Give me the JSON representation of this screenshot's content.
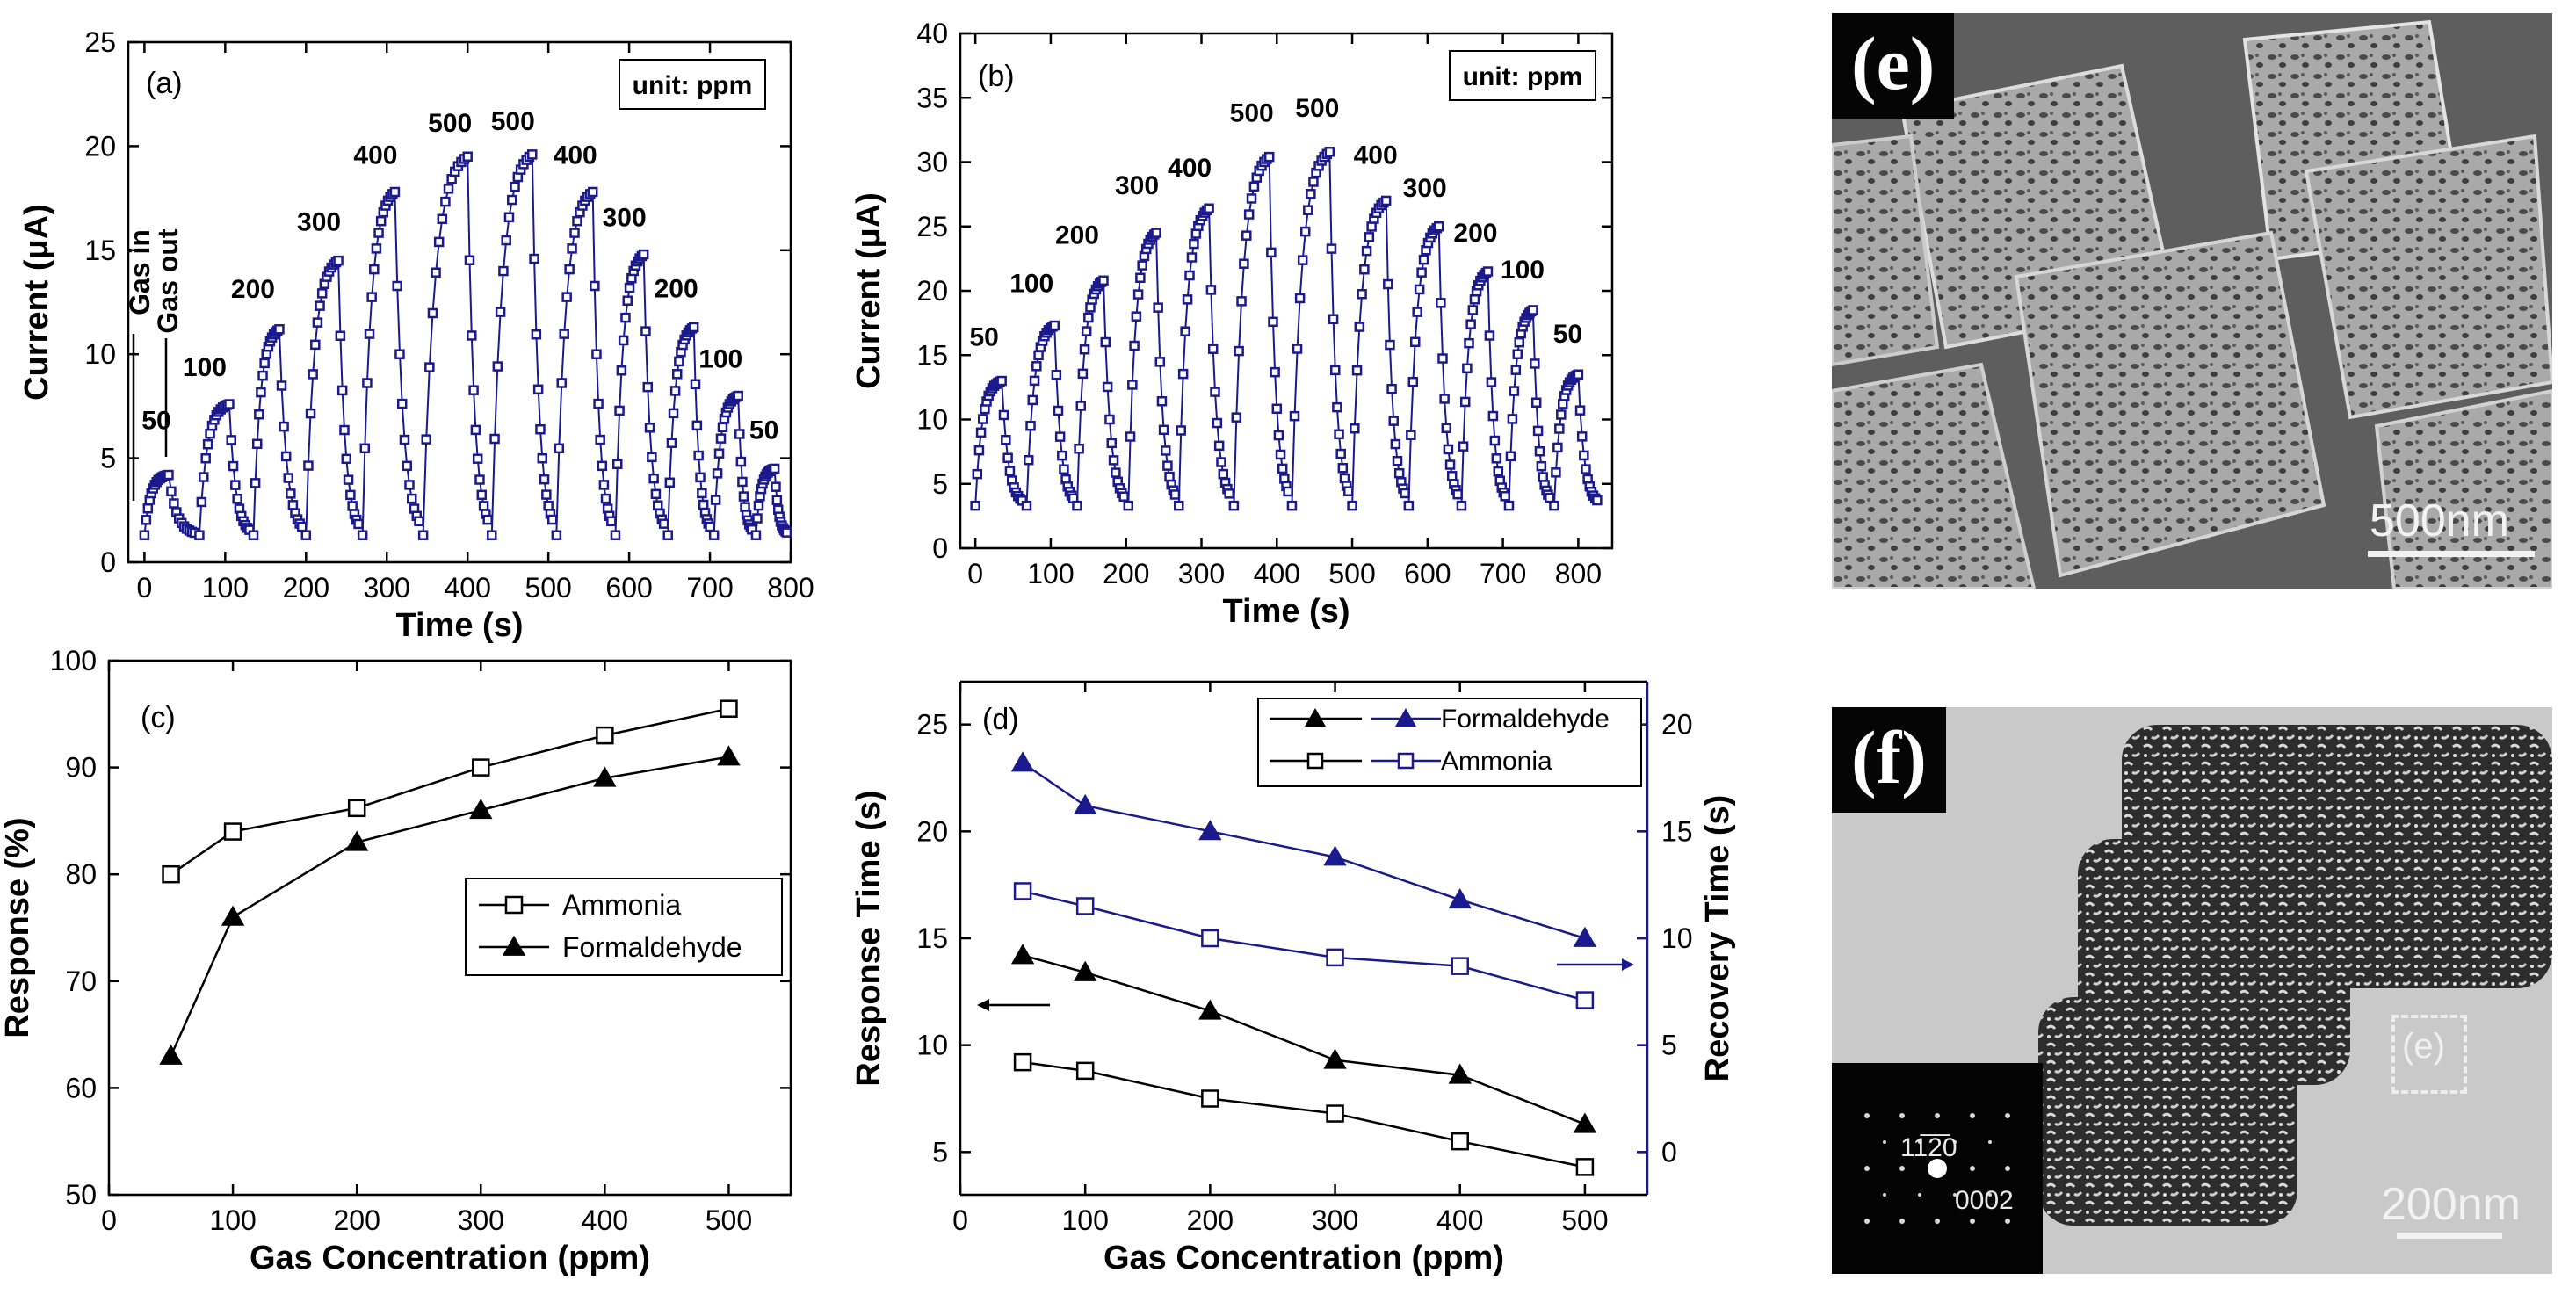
{
  "chart_data": [
    {
      "panel": "(a)",
      "type": "line",
      "xlabel": "Time (s)",
      "ylabel": "Current (μA)",
      "xlim": [
        -20,
        800
      ],
      "ylim": [
        0,
        25
      ],
      "xticks": [
        0,
        100,
        200,
        300,
        400,
        500,
        600,
        700,
        800
      ],
      "yticks": [
        0,
        5,
        10,
        15,
        20,
        25
      ],
      "unit_box": "unit: ppm",
      "annotation_in": "Gas in",
      "annotation_out": "Gas out",
      "baseline": 1.3,
      "pulses": [
        {
          "label": "50",
          "start": 0,
          "peak_time": 30,
          "end": 62,
          "peak": 4.2
        },
        {
          "label": "100",
          "start": 68,
          "peak_time": 105,
          "end": 130,
          "peak": 7.6
        },
        {
          "label": "200",
          "start": 135,
          "peak_time": 167,
          "end": 195,
          "peak": 11.2
        },
        {
          "label": "300",
          "start": 200,
          "peak_time": 240,
          "end": 265,
          "peak": 14.5
        },
        {
          "label": "400",
          "start": 270,
          "peak_time": 310,
          "end": 340,
          "peak": 17.8
        },
        {
          "label": "500",
          "start": 345,
          "peak_time": 400,
          "end": 425,
          "peak": 19.5
        },
        {
          "label": "500",
          "start": 430,
          "peak_time": 480,
          "end": 505,
          "peak": 19.6
        },
        {
          "label": "400",
          "start": 510,
          "peak_time": 555,
          "end": 578,
          "peak": 17.8
        },
        {
          "label": "300",
          "start": 583,
          "peak_time": 618,
          "end": 643,
          "peak": 14.8
        },
        {
          "label": "200",
          "start": 648,
          "peak_time": 680,
          "end": 700,
          "peak": 11.3
        },
        {
          "label": "100",
          "start": 705,
          "peak_time": 735,
          "end": 752,
          "peak": 8.0
        },
        {
          "label": "50",
          "start": 757,
          "peak_time": 780,
          "end": 795,
          "peak": 4.5
        }
      ]
    },
    {
      "panel": "(b)",
      "type": "line",
      "xlabel": "Time (s)",
      "ylabel": "Current (μA)",
      "xlim": [
        -20,
        845
      ],
      "ylim": [
        0,
        40
      ],
      "xticks": [
        0,
        100,
        200,
        300,
        400,
        500,
        600,
        700,
        800
      ],
      "yticks": [
        0,
        5,
        10,
        15,
        20,
        25,
        30,
        35,
        40
      ],
      "unit_box": "unit: ppm",
      "baseline": 3.3,
      "pulses": [
        {
          "label": "50",
          "start": 0,
          "peak_time": 35,
          "end": 62,
          "peak": 13.0
        },
        {
          "label": "100",
          "start": 68,
          "peak_time": 105,
          "end": 130,
          "peak": 17.3
        },
        {
          "label": "200",
          "start": 135,
          "peak_time": 170,
          "end": 197,
          "peak": 20.8
        },
        {
          "label": "300",
          "start": 203,
          "peak_time": 240,
          "end": 265,
          "peak": 24.5
        },
        {
          "label": "400",
          "start": 270,
          "peak_time": 310,
          "end": 337,
          "peak": 26.4
        },
        {
          "label": "500",
          "start": 343,
          "peak_time": 390,
          "end": 415,
          "peak": 30.4
        },
        {
          "label": "500",
          "start": 420,
          "peak_time": 470,
          "end": 495,
          "peak": 30.8
        },
        {
          "label": "400",
          "start": 500,
          "peak_time": 545,
          "end": 570,
          "peak": 27.0
        },
        {
          "label": "300",
          "start": 575,
          "peak_time": 615,
          "end": 640,
          "peak": 25.0
        },
        {
          "label": "200",
          "start": 645,
          "peak_time": 680,
          "end": 703,
          "peak": 21.5
        },
        {
          "label": "100",
          "start": 708,
          "peak_time": 740,
          "end": 762,
          "peak": 18.5
        },
        {
          "label": "50",
          "start": 768,
          "peak_time": 800,
          "end": 825,
          "peak": 13.5
        }
      ]
    },
    {
      "panel": "(c)",
      "type": "line",
      "xlabel": "Gas Concentration (ppm)",
      "ylabel": "Response (%)",
      "xlim": [
        0,
        550
      ],
      "ylim": [
        50,
        100
      ],
      "xticks": [
        0,
        100,
        200,
        300,
        400,
        500
      ],
      "yticks": [
        50,
        60,
        70,
        80,
        90,
        100
      ],
      "x": [
        50,
        100,
        200,
        300,
        400,
        500
      ],
      "series": [
        {
          "name": "Ammonia",
          "marker": "open-square",
          "values": [
            80,
            84,
            86.2,
            90,
            93,
            95.5
          ]
        },
        {
          "name": "Formaldehyde",
          "marker": "filled-triangle",
          "values": [
            63,
            76,
            83,
            86,
            89,
            91
          ]
        }
      ]
    },
    {
      "panel": "(d)",
      "type": "line",
      "xlabel": "Gas Concentration (ppm)",
      "ylabel": "Response Time (s)",
      "y2label": "Recovery Time (s)",
      "xlim": [
        0,
        550
      ],
      "ylim": [
        3,
        27
      ],
      "y2lim": [
        -2,
        22
      ],
      "xticks": [
        0,
        100,
        200,
        300,
        400,
        500
      ],
      "yticks": [
        5,
        10,
        15,
        20,
        25
      ],
      "y2ticks": [
        0,
        5,
        10,
        15,
        20
      ],
      "x": [
        50,
        100,
        200,
        300,
        400,
        500
      ],
      "series": [
        {
          "name": "Formaldehyde",
          "axis": "left",
          "marker": "filled-triangle",
          "color": "#000000",
          "values": [
            14.2,
            13.4,
            11.6,
            9.3,
            8.6,
            6.3
          ]
        },
        {
          "name": "Ammonia",
          "axis": "left",
          "marker": "open-square",
          "color": "#000000",
          "values": [
            9.2,
            8.8,
            7.5,
            6.8,
            5.5,
            4.3
          ]
        },
        {
          "name": "Formaldehyde",
          "axis": "right",
          "marker": "filled-triangle",
          "color": "#1a1a8c",
          "values": [
            18.2,
            16.2,
            15.0,
            13.8,
            11.8,
            10.0
          ]
        },
        {
          "name": "Ammonia",
          "axis": "right",
          "marker": "open-square",
          "color": "#1a1a8c",
          "values": [
            12.2,
            11.5,
            10.0,
            9.1,
            8.7,
            7.1
          ]
        }
      ]
    }
  ],
  "micrographs": {
    "e": {
      "label": "(e)",
      "scale": "500nm"
    },
    "f": {
      "label": "(f)",
      "scale": "200nm",
      "inset_a": "11̅2̅0",
      "inset_b": "0002",
      "box_label": "(e)"
    }
  },
  "colors": {
    "blue": "#1a1a8c",
    "black": "#000000",
    "sem_bg": "#6d6d6d",
    "tem_bg": "#c9c9c9"
  }
}
